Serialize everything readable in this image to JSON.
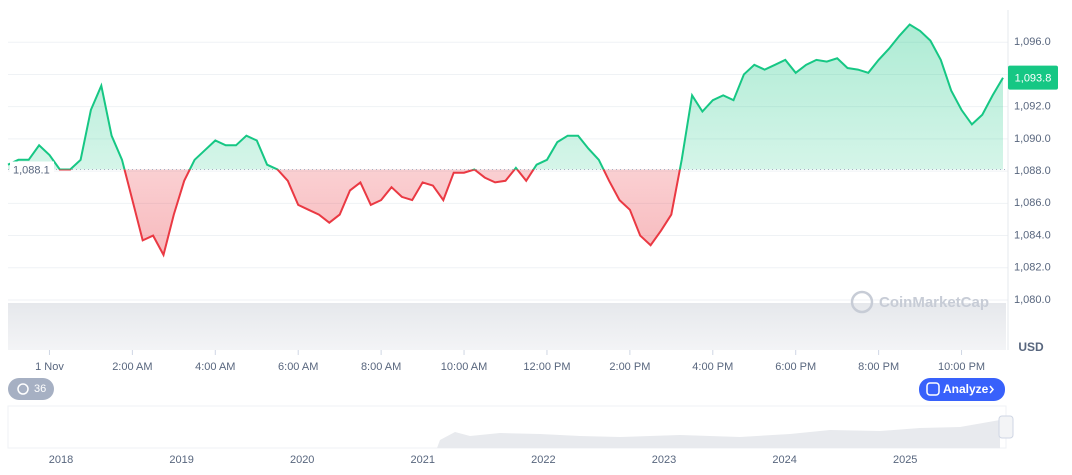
{
  "chart_data": {
    "type": "line",
    "x": [
      -1,
      -0.75,
      -0.5,
      -0.25,
      0,
      0.25,
      0.5,
      0.75,
      1,
      1.25,
      1.5,
      1.75,
      2,
      2.25,
      2.5,
      2.75,
      3,
      3.25,
      3.5,
      3.75,
      4,
      4.25,
      4.5,
      4.75,
      5,
      5.25,
      5.5,
      5.75,
      6,
      6.25,
      6.5,
      6.75,
      7,
      7.25,
      7.5,
      7.75,
      8,
      8.25,
      8.5,
      8.75,
      9,
      9.25,
      9.5,
      9.75,
      10,
      10.25,
      10.5,
      10.75,
      11,
      11.25,
      11.5,
      11.75,
      12,
      12.25,
      12.5,
      12.75,
      13,
      13.25,
      13.5,
      13.75,
      14,
      14.25,
      14.5,
      14.75,
      15,
      15.25,
      15.5,
      15.75,
      16,
      16.25,
      16.5,
      16.75,
      17,
      17.25,
      17.5,
      17.75,
      18,
      18.25,
      18.5,
      18.75,
      19,
      19.25,
      19.5,
      19.75,
      20,
      20.25,
      20.5,
      20.75,
      21,
      21.25,
      21.5,
      21.75,
      22,
      22.25,
      22.5,
      22.75,
      23
    ],
    "series": [
      {
        "values": [
          1088.4,
          1088.7,
          1088.7,
          1089.6,
          1089.0,
          1088.1,
          1088.1,
          1088.7,
          1091.8,
          1093.3,
          1090.2,
          1088.7,
          1086.2,
          1083.7,
          1084.0,
          1082.8,
          1085.3,
          1087.4,
          1088.7,
          1089.3,
          1089.9,
          1089.6,
          1089.6,
          1090.2,
          1089.9,
          1088.4,
          1088.1,
          1087.4,
          1085.9,
          1085.6,
          1085.3,
          1084.8,
          1085.3,
          1086.8,
          1087.3,
          1085.9,
          1086.2,
          1087.0,
          1086.4,
          1086.2,
          1087.3,
          1087.1,
          1086.2,
          1087.9,
          1087.9,
          1088.1,
          1087.6,
          1087.3,
          1087.4,
          1088.2,
          1087.4,
          1088.4,
          1088.7,
          1089.8,
          1090.2,
          1090.2,
          1089.4,
          1088.7,
          1087.4,
          1086.2,
          1085.6,
          1084.0,
          1083.4,
          1084.3,
          1085.3,
          1088.7,
          1092.7,
          1091.7,
          1092.4,
          1092.7,
          1092.4,
          1094.0,
          1094.6,
          1094.3,
          1094.6,
          1094.9,
          1094.1,
          1094.6,
          1094.9,
          1094.8,
          1095.0,
          1094.4,
          1094.3,
          1094.1,
          1094.9,
          1095.6,
          1096.4,
          1097.1,
          1096.7,
          1096.1,
          1094.9,
          1093.0,
          1091.8,
          1090.9,
          1091.5,
          1092.7,
          1093.8
        ]
      }
    ],
    "up_color": "#16c784",
    "down_color": "#ea3943",
    "baseline": {
      "value": 1088.1,
      "label": "1,088.1"
    },
    "current_price": {
      "value": 1093.8,
      "label": "1,093.8"
    },
    "xlim": [
      -1,
      23
    ],
    "xticks": [
      {
        "value": 0,
        "label": "1 Nov"
      },
      {
        "value": 2,
        "label": "2:00 AM"
      },
      {
        "value": 4,
        "label": "4:00 AM"
      },
      {
        "value": 6,
        "label": "6:00 AM"
      },
      {
        "value": 8,
        "label": "8:00 AM"
      },
      {
        "value": 10,
        "label": "10:00 AM"
      },
      {
        "value": 12,
        "label": "12:00 PM"
      },
      {
        "value": 14,
        "label": "2:00 PM"
      },
      {
        "value": 16,
        "label": "4:00 PM"
      },
      {
        "value": 18,
        "label": "6:00 PM"
      },
      {
        "value": 20,
        "label": "8:00 PM"
      },
      {
        "value": 22,
        "label": "10:00 PM"
      }
    ],
    "ylim": [
      1080,
      1098
    ],
    "yticks": [
      {
        "value": 1080,
        "label": "1,080.0"
      },
      {
        "value": 1082,
        "label": "1,082.0"
      },
      {
        "value": 1084,
        "label": "1,084.0"
      },
      {
        "value": 1086,
        "label": "1,086.0"
      },
      {
        "value": 1088,
        "label": "1,088.0"
      },
      {
        "value": 1090,
        "label": "1,090.0"
      },
      {
        "value": 1092,
        "label": "1,092.0"
      },
      {
        "value": 1094,
        "label": "1,094.0"
      },
      {
        "value": 1096,
        "label": "1,096.0"
      }
    ],
    "grid": true,
    "y_unit": "USD",
    "watermark": "CoinMarketCap",
    "events_count": "36",
    "analyze_button": "Analyze",
    "navigator_years": [
      "2018",
      "2019",
      "2020",
      "2021",
      "2022",
      "2023",
      "2024",
      "2025"
    ]
  }
}
